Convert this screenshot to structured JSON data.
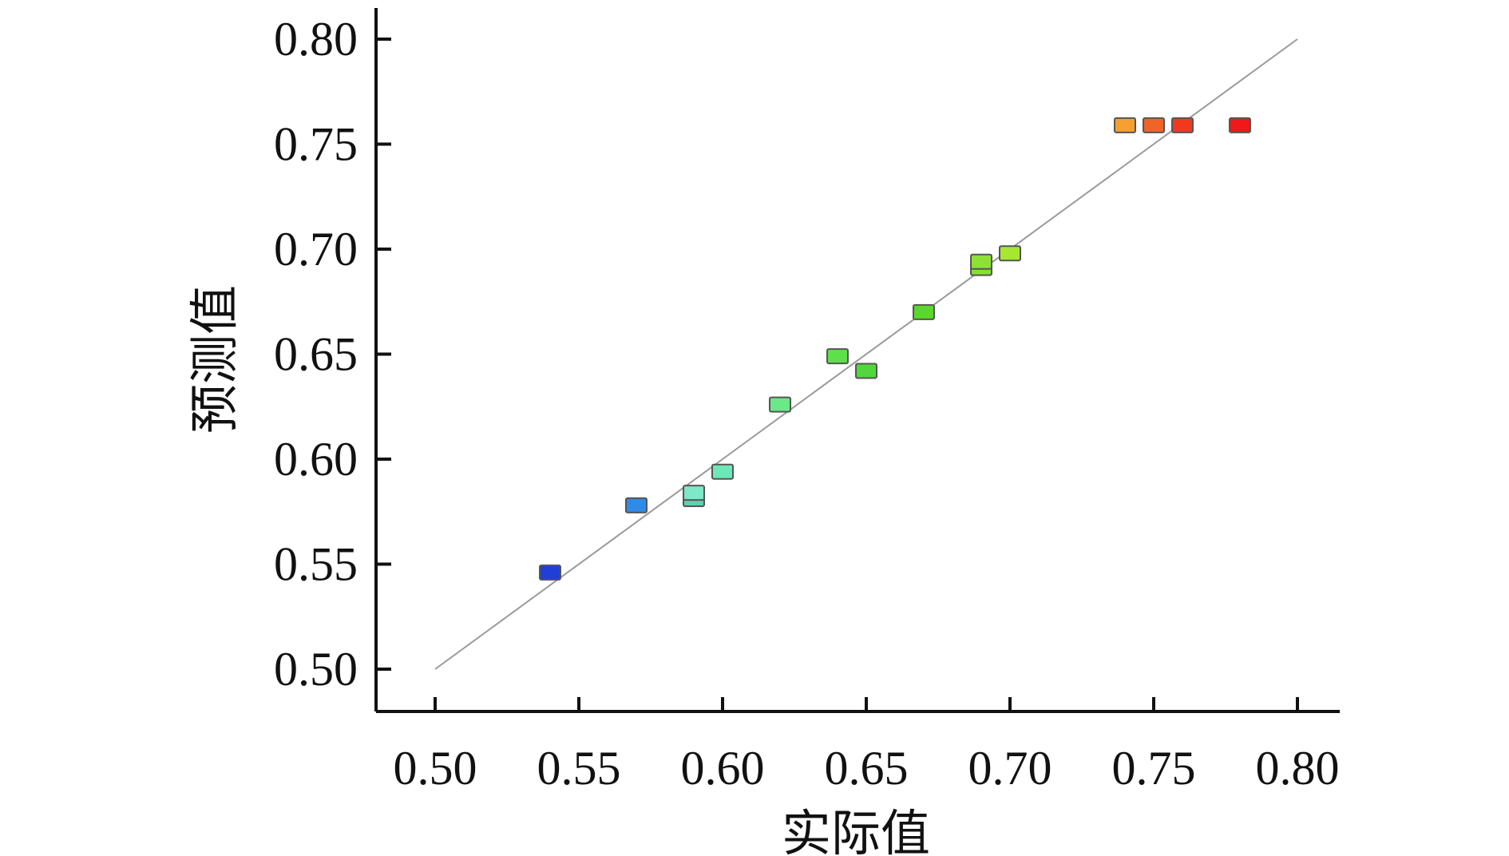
{
  "chart_data": {
    "type": "scatter",
    "title": "",
    "xlabel": "实际值",
    "ylabel": "预测值",
    "xlim": [
      0.5,
      0.8
    ],
    "ylim": [
      0.5,
      0.8
    ],
    "xticks": [
      "0.50",
      "0.55",
      "0.60",
      "0.65",
      "0.70",
      "0.75",
      "0.80"
    ],
    "yticks": [
      "0.50",
      "0.55",
      "0.60",
      "0.65",
      "0.70",
      "0.75",
      "0.80"
    ],
    "grid": false,
    "reference_line": {
      "from": [
        0.5,
        0.5
      ],
      "to": [
        0.8,
        0.8
      ],
      "color": "#9a9a9a"
    },
    "points": [
      {
        "x": 0.54,
        "y": 0.546,
        "color": "#1f3fd6"
      },
      {
        "x": 0.57,
        "y": 0.578,
        "color": "#2f8be8"
      },
      {
        "x": 0.59,
        "y": 0.581,
        "color": "#5fd0b0"
      },
      {
        "x": 0.59,
        "y": 0.584,
        "color": "#7ee8c8"
      },
      {
        "x": 0.6,
        "y": 0.594,
        "color": "#6ee8b8"
      },
      {
        "x": 0.62,
        "y": 0.626,
        "color": "#6be888"
      },
      {
        "x": 0.64,
        "y": 0.649,
        "color": "#5ee04a"
      },
      {
        "x": 0.65,
        "y": 0.642,
        "color": "#4fd83a"
      },
      {
        "x": 0.67,
        "y": 0.67,
        "color": "#5ad82a"
      },
      {
        "x": 0.69,
        "y": 0.691,
        "color": "#86e030"
      },
      {
        "x": 0.69,
        "y": 0.694,
        "color": "#8ee034"
      },
      {
        "x": 0.7,
        "y": 0.698,
        "color": "#a6e830"
      },
      {
        "x": 0.74,
        "y": 0.759,
        "color": "#f5a030"
      },
      {
        "x": 0.75,
        "y": 0.759,
        "color": "#f06428"
      },
      {
        "x": 0.76,
        "y": 0.759,
        "color": "#f03a20"
      },
      {
        "x": 0.78,
        "y": 0.759,
        "color": "#f01818"
      }
    ]
  }
}
